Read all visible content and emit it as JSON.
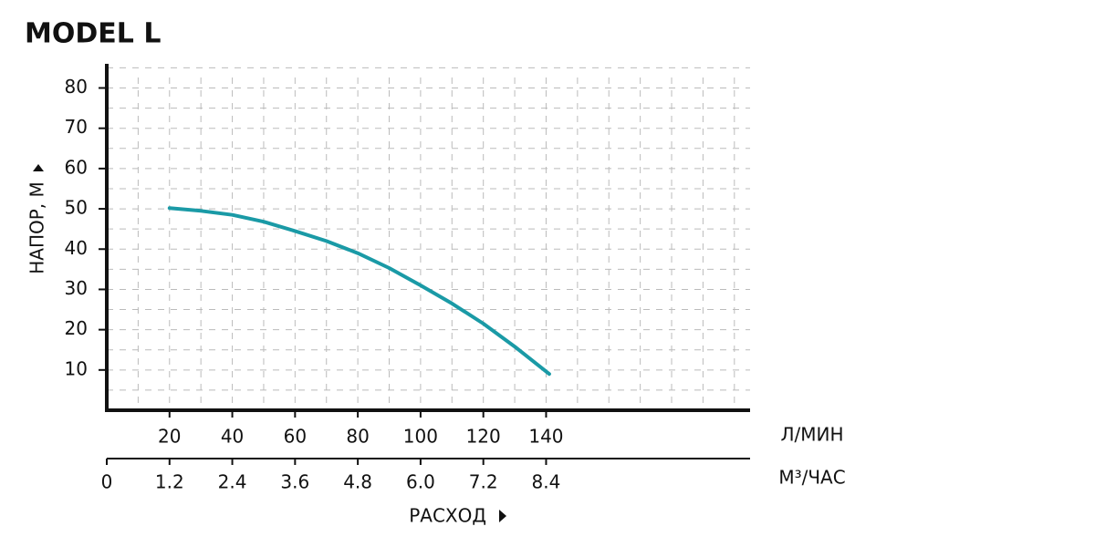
{
  "chart_data": {
    "type": "line",
    "title": "MODEL L",
    "xlabel": "РАСХОД",
    "ylabel": "НАПОР, М",
    "x_unit": "Л/МИН",
    "x2_unit": "М³/ЧАС",
    "x": [
      20,
      30,
      40,
      50,
      60,
      70,
      80,
      90,
      100,
      110,
      120,
      130,
      141
    ],
    "series": [
      {
        "name": "MODEL L",
        "color": "#1a9aa6",
        "values": [
          50.2,
          49.5,
          48.5,
          46.8,
          44.5,
          42,
          39,
          35.3,
          31,
          26.5,
          21.5,
          15.8,
          9
        ]
      }
    ],
    "xlim": [
      0,
      205
    ],
    "xticks": [
      20,
      40,
      60,
      80,
      100,
      120,
      140
    ],
    "x2lim": [
      0,
      12.3
    ],
    "x2ticks": [
      0,
      1.2,
      2.4,
      3.6,
      4.8,
      {
        "value": 6,
        "label": "6.0"
      },
      7.2,
      8.4
    ],
    "ylim": [
      0,
      86
    ],
    "yticks": [
      10,
      20,
      30,
      40,
      50,
      60,
      70,
      80
    ],
    "xgrid": [
      10,
      20,
      30,
      40,
      50,
      60,
      70,
      80,
      90,
      100,
      110,
      120,
      130,
      140,
      150,
      160,
      170,
      180,
      190,
      200
    ],
    "ygrid": [
      5,
      10,
      15,
      20,
      25,
      30,
      35,
      40,
      45,
      50,
      55,
      60,
      65,
      70,
      75,
      80,
      85
    ],
    "grid": true
  }
}
